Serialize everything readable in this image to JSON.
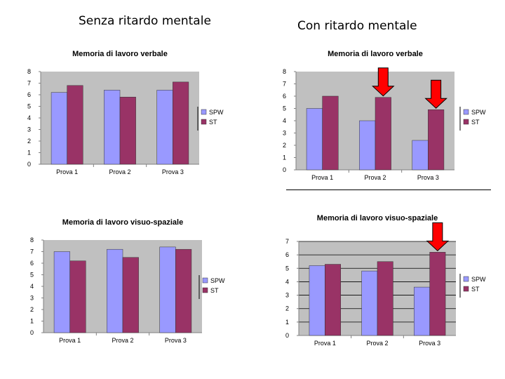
{
  "headings": {
    "left": "Senza ritardo mentale",
    "right": "Con ritardo mentale"
  },
  "colors": {
    "spw": "#9999ff",
    "st": "#993366",
    "plot_bg": "#c0c0c0",
    "arrow": "#ff0000"
  },
  "chart_data": [
    {
      "type": "bar",
      "title": "Memoria di lavoro verbale",
      "categories": [
        "Prova 1",
        "Prova 2",
        "Prova 3"
      ],
      "series": [
        {
          "name": "SPW",
          "values": [
            6.2,
            6.4,
            6.4
          ]
        },
        {
          "name": "ST",
          "values": [
            6.8,
            5.8,
            7.1
          ]
        }
      ],
      "ylim": [
        0,
        8
      ],
      "yticks": [
        "0",
        "1",
        "2",
        "3",
        "4",
        "5",
        "6",
        "7",
        "8"
      ],
      "grid": false,
      "legend": "right",
      "arrows": []
    },
    {
      "type": "bar",
      "title": "Memoria di lavoro verbale",
      "categories": [
        "Prova 1",
        "Prova 2",
        "Prova 3"
      ],
      "series": [
        {
          "name": "SPW",
          "values": [
            5.0,
            4.0,
            2.4
          ]
        },
        {
          "name": "ST",
          "values": [
            6.0,
            5.9,
            4.9
          ]
        }
      ],
      "ylim": [
        0,
        8
      ],
      "yticks": [
        "0",
        "1",
        "2",
        "3",
        "4",
        "5",
        "6",
        "7",
        "8"
      ],
      "grid": false,
      "legend": "right",
      "arrows": [
        "Prova 2",
        "Prova 3"
      ]
    },
    {
      "type": "bar",
      "title": "Memoria di lavoro visuo-spaziale",
      "categories": [
        "Prova 1",
        "Prova 2",
        "Prova 3"
      ],
      "series": [
        {
          "name": "SPW",
          "values": [
            7.0,
            7.2,
            7.4
          ]
        },
        {
          "name": "ST",
          "values": [
            6.2,
            6.5,
            7.2
          ]
        }
      ],
      "ylim": [
        0,
        8
      ],
      "yticks": [
        "0",
        "1",
        "2",
        "3",
        "4",
        "5",
        "6",
        "7",
        "8"
      ],
      "grid": false,
      "legend": "right",
      "arrows": []
    },
    {
      "type": "bar",
      "title": "Memoria di lavoro visuo-spaziale",
      "categories": [
        "Prova 1",
        "Prova 2",
        "Prova 3"
      ],
      "series": [
        {
          "name": "SPW",
          "values": [
            5.2,
            4.8,
            3.6
          ]
        },
        {
          "name": "ST",
          "values": [
            5.3,
            5.5,
            6.2
          ]
        }
      ],
      "ylim": [
        0,
        7
      ],
      "yticks": [
        "0",
        "1",
        "2",
        "3",
        "4",
        "5",
        "6",
        "7"
      ],
      "grid": true,
      "legend": "right",
      "arrows": [
        "Prova 3"
      ]
    }
  ]
}
